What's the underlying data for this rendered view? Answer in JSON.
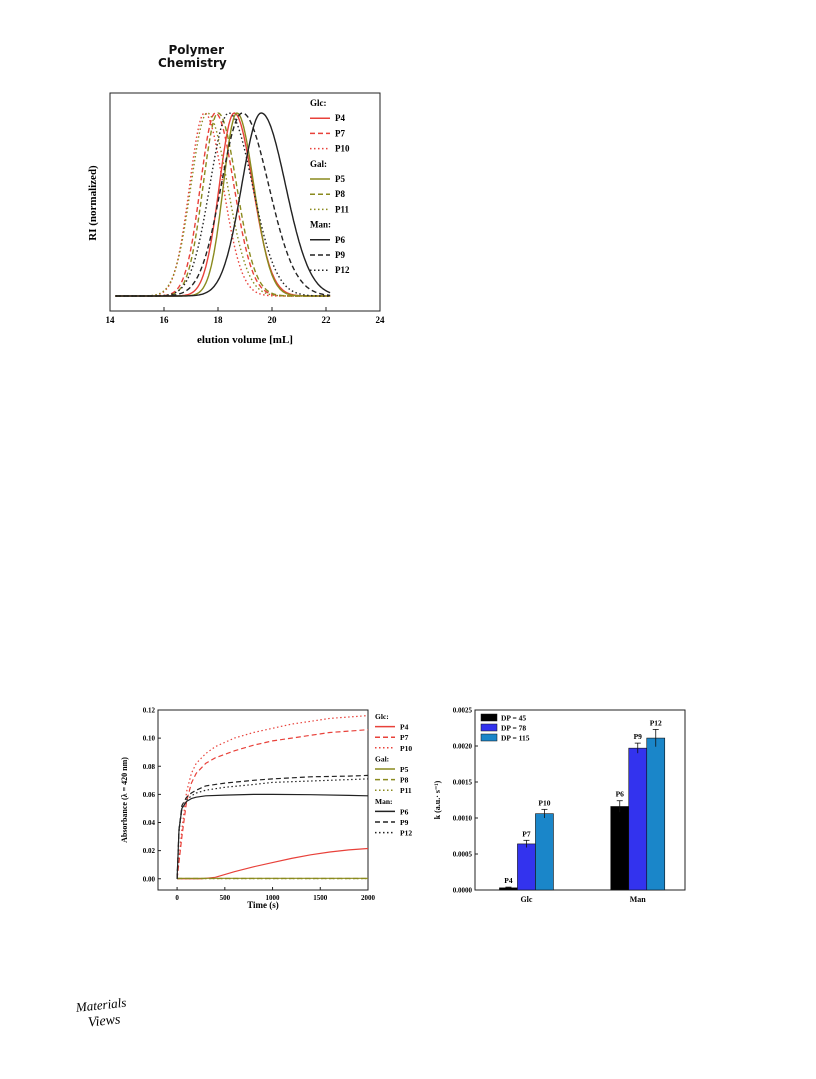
{
  "journal": {
    "line1": "Polymer",
    "line2": "Chemistry"
  },
  "figure_gpc": {
    "ylabel": "RI (normalized)",
    "xlabel": "elution volume [mL]",
    "xticks": [
      "14",
      "16",
      "18",
      "20",
      "22",
      "24"
    ],
    "legend": [
      {
        "kind": "group",
        "text": "Glc:"
      },
      {
        "kind": "entry",
        "text": "P4",
        "color": "#e8413a",
        "dash": "solid"
      },
      {
        "kind": "entry",
        "text": "P7",
        "color": "#e8413a",
        "dash": "dash"
      },
      {
        "kind": "entry",
        "text": "P10",
        "color": "#e8413a",
        "dash": "dot"
      },
      {
        "kind": "group",
        "text": "Gal:"
      },
      {
        "kind": "entry",
        "text": "P5",
        "color": "#8a8a1e",
        "dash": "solid"
      },
      {
        "kind": "entry",
        "text": "P8",
        "color": "#8a8a1e",
        "dash": "dash"
      },
      {
        "kind": "entry",
        "text": "P11",
        "color": "#8a8a1e",
        "dash": "dot"
      },
      {
        "kind": "group",
        "text": "Man:"
      },
      {
        "kind": "entry",
        "text": "P6",
        "color": "#222222",
        "dash": "solid"
      },
      {
        "kind": "entry",
        "text": "P9",
        "color": "#222222",
        "dash": "dash"
      },
      {
        "kind": "entry",
        "text": "P12",
        "color": "#222222",
        "dash": "dot"
      }
    ]
  },
  "figure_kinetics": {
    "ylabel": "Absorbance (λ = 420 nm)",
    "xlabel": "Time (s)",
    "xticks": [
      "0",
      "500",
      "1000",
      "1500",
      "2000"
    ],
    "yticks": [
      "0.00",
      "0.02",
      "0.04",
      "0.06",
      "0.08",
      "0.10",
      "0.12"
    ],
    "legend": [
      {
        "kind": "group",
        "text": "Glc:"
      },
      {
        "kind": "entry",
        "text": "P4",
        "color": "#e8413a",
        "dash": "solid"
      },
      {
        "kind": "entry",
        "text": "P7",
        "color": "#e8413a",
        "dash": "dash"
      },
      {
        "kind": "entry",
        "text": "P10",
        "color": "#e8413a",
        "dash": "dot"
      },
      {
        "kind": "group",
        "text": "Gal:"
      },
      {
        "kind": "entry",
        "text": "P5",
        "color": "#8a8a1e",
        "dash": "solid"
      },
      {
        "kind": "entry",
        "text": "P8",
        "color": "#8a8a1e",
        "dash": "dash"
      },
      {
        "kind": "entry",
        "text": "P11",
        "color": "#8a8a1e",
        "dash": "dot"
      },
      {
        "kind": "group",
        "text": "Man:"
      },
      {
        "kind": "entry",
        "text": "P6",
        "color": "#222222",
        "dash": "solid"
      },
      {
        "kind": "entry",
        "text": "P9",
        "color": "#222222",
        "dash": "dash"
      },
      {
        "kind": "entry",
        "text": "P12",
        "color": "#222222",
        "dash": "dot"
      }
    ]
  },
  "figure_rates": {
    "ylabel": "k (a.u.· s⁻¹)",
    "yticks": [
      "0.0000",
      "0.0005",
      "0.0010",
      "0.0015",
      "0.0020",
      "0.0025"
    ],
    "legend": [
      {
        "text": "DP = 45",
        "color": "#000000"
      },
      {
        "text": "DP = 78",
        "color": "#3333ee"
      },
      {
        "text": "DP = 115",
        "color": "#1a86c9"
      }
    ]
  },
  "logo": {
    "line1": "Materials",
    "line2": "Views"
  },
  "chart_data": [
    {
      "type": "line",
      "xlabel": "elution volume [mL]",
      "ylabel": "RI (normalized)",
      "xlim": [
        14,
        24
      ],
      "grid": false,
      "legend": "top-right",
      "series": [
        {
          "name": "P4",
          "group": "Glc",
          "peak": 18.6,
          "sigma": 0.55
        },
        {
          "name": "P7",
          "group": "Glc",
          "peak": 17.9,
          "sigma": 0.55
        },
        {
          "name": "P10",
          "group": "Glc",
          "peak": 17.5,
          "sigma": 0.55
        },
        {
          "name": "P5",
          "group": "Gal",
          "peak": 18.7,
          "sigma": 0.5
        },
        {
          "name": "P8",
          "group": "Gal",
          "peak": 18.0,
          "sigma": 0.55
        },
        {
          "name": "P11",
          "group": "Gal",
          "peak": 17.6,
          "sigma": 0.6
        },
        {
          "name": "P6",
          "group": "Man",
          "peak": 19.6,
          "sigma": 0.72
        },
        {
          "name": "P9",
          "group": "Man",
          "peak": 18.9,
          "sigma": 0.78
        },
        {
          "name": "P12",
          "group": "Man",
          "peak": 18.4,
          "sigma": 0.7
        }
      ]
    },
    {
      "type": "line",
      "xlabel": "Time (s)",
      "ylabel": "Absorbance (λ = 420 nm)",
      "xlim": [
        -200,
        2000
      ],
      "ylim": [
        -0.008,
        0.12
      ],
      "grid": false,
      "legend": "right",
      "series": [
        {
          "name": "P4",
          "x": [
            0,
            250,
            400,
            600,
            800,
            1000,
            1200,
            1400,
            1600,
            1800,
            2000
          ],
          "y": [
            0,
            0,
            0.001,
            0.005,
            0.0085,
            0.0115,
            0.0145,
            0.017,
            0.019,
            0.0205,
            0.0215
          ]
        },
        {
          "name": "P7",
          "x": [
            0,
            50,
            100,
            150,
            200,
            300,
            400,
            600,
            800,
            1000,
            1200,
            1400,
            1600,
            1800,
            2000
          ],
          "y": [
            0,
            0.03,
            0.055,
            0.068,
            0.075,
            0.082,
            0.086,
            0.091,
            0.095,
            0.098,
            0.1,
            0.102,
            0.104,
            0.105,
            0.106
          ]
        },
        {
          "name": "P10",
          "x": [
            0,
            50,
            100,
            150,
            200,
            300,
            400,
            600,
            800,
            1000,
            1200,
            1400,
            1600,
            1800,
            2000
          ],
          "y": [
            0,
            0.035,
            0.062,
            0.075,
            0.082,
            0.089,
            0.094,
            0.1,
            0.104,
            0.107,
            0.11,
            0.112,
            0.114,
            0.115,
            0.116
          ]
        },
        {
          "name": "P5",
          "x": [
            0,
            2000
          ],
          "y": [
            0.0003,
            0.0003
          ]
        },
        {
          "name": "P8",
          "x": [
            0,
            2000
          ],
          "y": [
            0.0002,
            0.0002
          ]
        },
        {
          "name": "P11",
          "x": [
            0,
            2000
          ],
          "y": [
            0.0001,
            0.0001
          ]
        },
        {
          "name": "P6",
          "x": [
            0,
            20,
            50,
            100,
            150,
            200,
            300,
            500,
            800,
            1000,
            1400,
            1800,
            2000
          ],
          "y": [
            0,
            0.035,
            0.05,
            0.055,
            0.057,
            0.058,
            0.059,
            0.0595,
            0.06,
            0.06,
            0.0598,
            0.0593,
            0.059
          ]
        },
        {
          "name": "P9",
          "x": [
            0,
            20,
            50,
            100,
            150,
            200,
            300,
            500,
            800,
            1000,
            1400,
            1800,
            2000
          ],
          "y": [
            0,
            0.035,
            0.052,
            0.058,
            0.061,
            0.063,
            0.066,
            0.068,
            0.07,
            0.071,
            0.0725,
            0.073,
            0.0735
          ]
        },
        {
          "name": "P12",
          "x": [
            0,
            20,
            50,
            100,
            150,
            200,
            300,
            500,
            800,
            1000,
            1400,
            1800,
            2000
          ],
          "y": [
            0,
            0.033,
            0.05,
            0.056,
            0.059,
            0.061,
            0.063,
            0.065,
            0.067,
            0.0685,
            0.0695,
            0.0705,
            0.071
          ]
        }
      ]
    },
    {
      "type": "bar",
      "categories": [
        "Glc",
        "Man"
      ],
      "ylabel": "k (a.u.· s⁻¹)",
      "ylim": [
        0,
        0.0025
      ],
      "legend": "top-left",
      "series": [
        {
          "name": "DP = 45",
          "values": [
            3e-05,
            0.00116
          ],
          "errors": [
            1e-05,
            8e-05
          ],
          "labels": [
            "P4",
            "P6"
          ]
        },
        {
          "name": "DP = 78",
          "values": [
            0.00064,
            0.00197
          ],
          "errors": [
            5e-05,
            7e-05
          ],
          "labels": [
            "P7",
            "P9"
          ]
        },
        {
          "name": "DP = 115",
          "values": [
            0.00106,
            0.00211
          ],
          "errors": [
            6e-05,
            0.00012
          ],
          "labels": [
            "P10",
            "P12"
          ]
        }
      ]
    }
  ]
}
